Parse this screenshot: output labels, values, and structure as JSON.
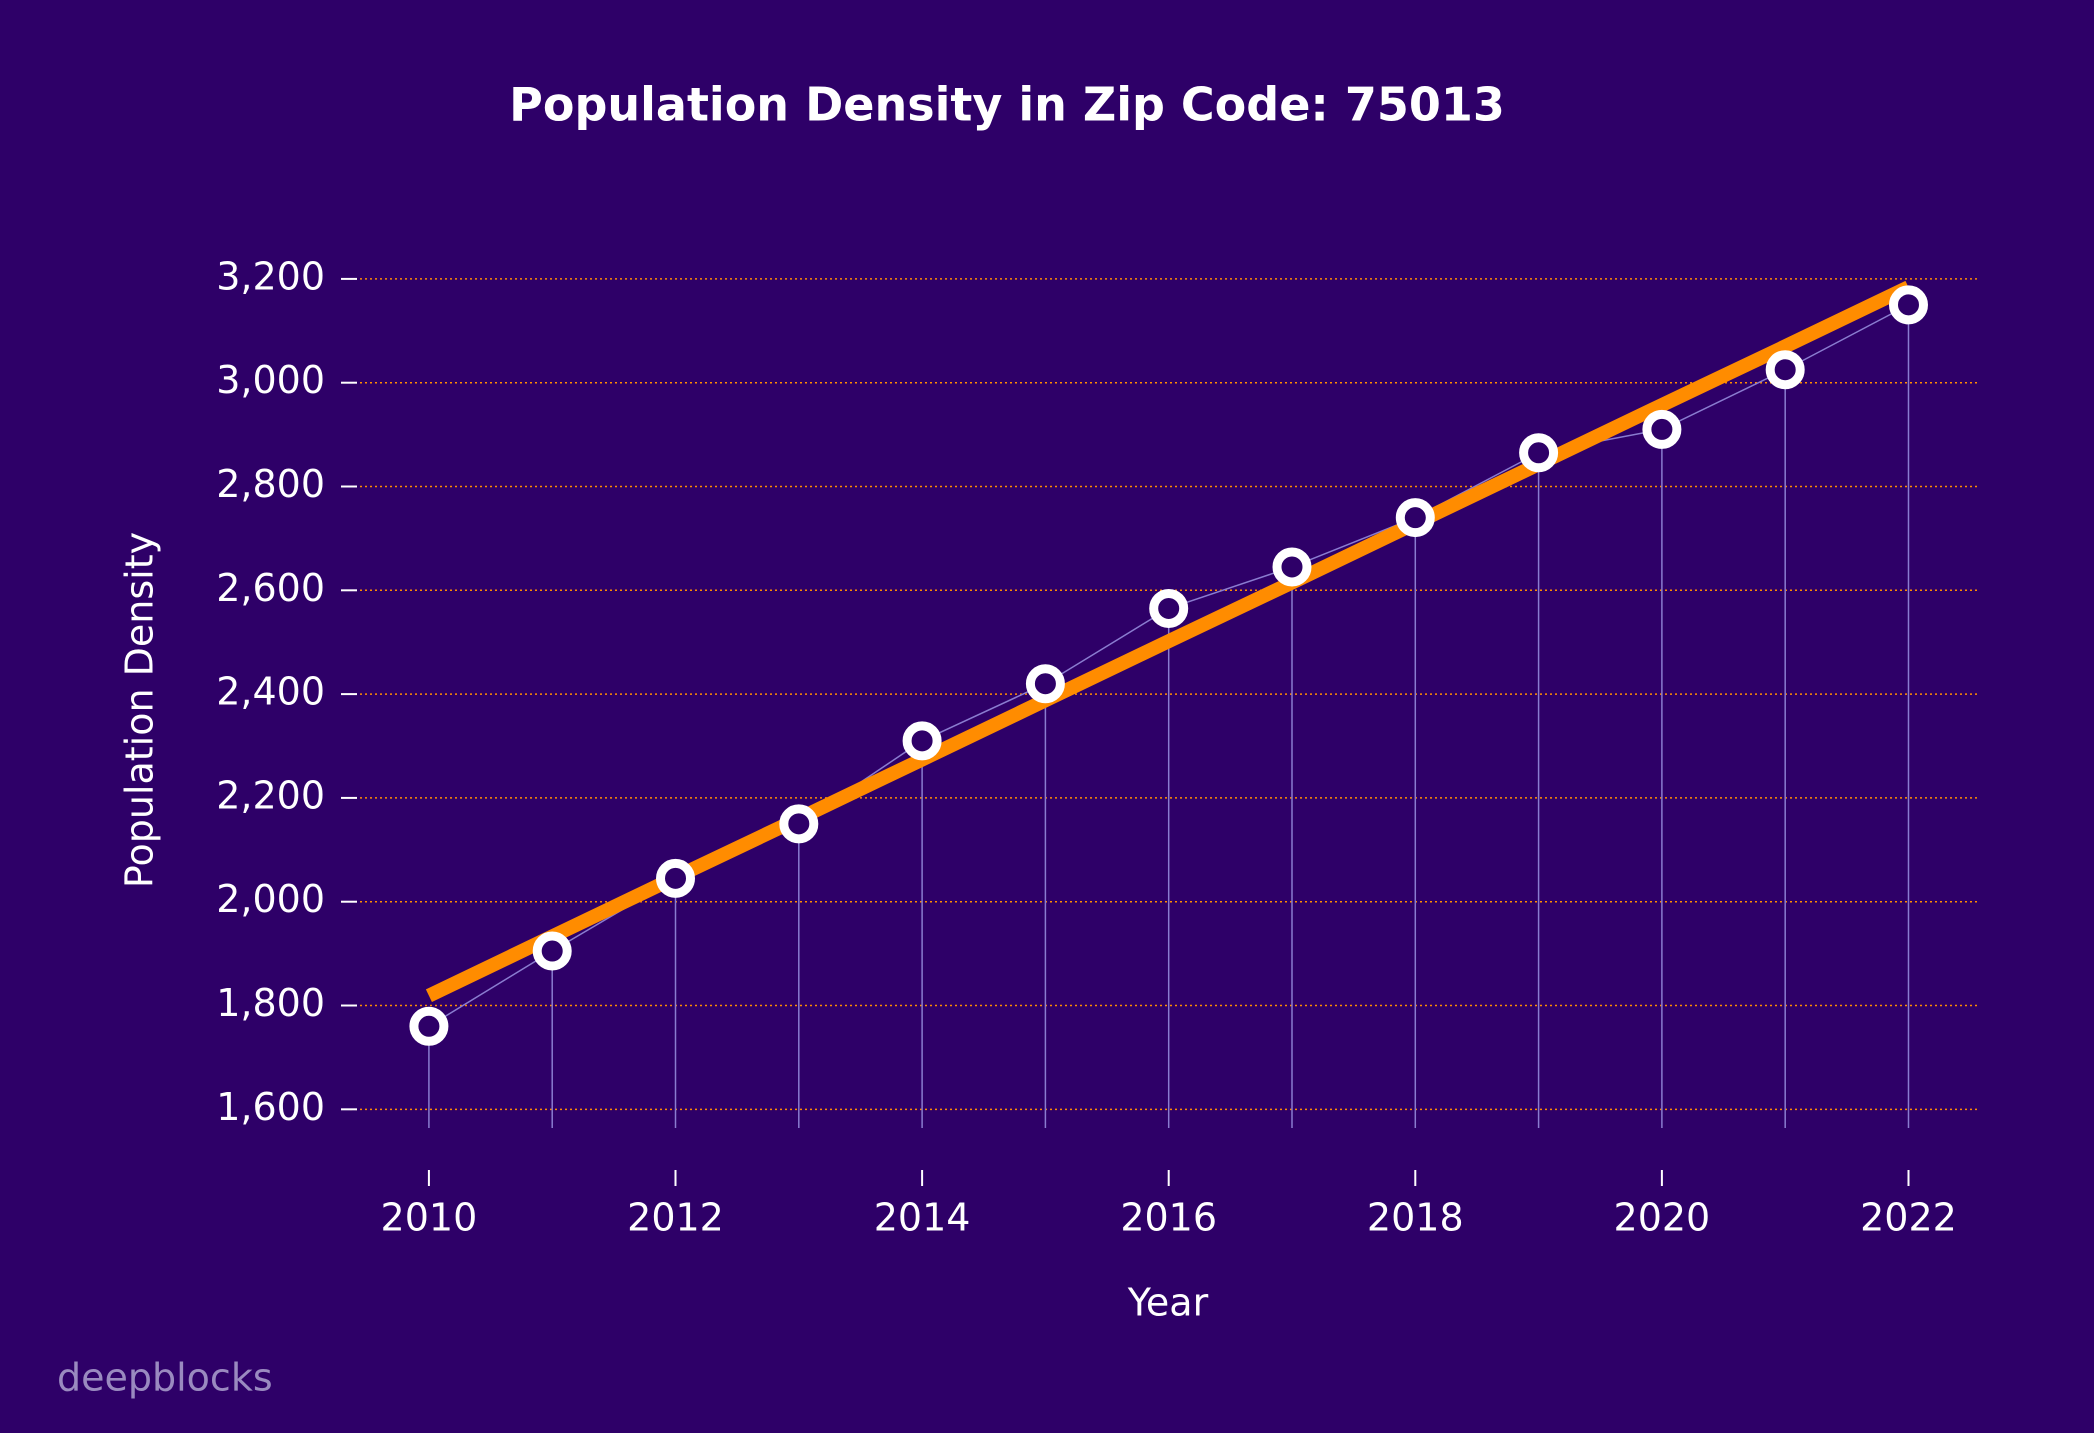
{
  "chart_data": {
    "type": "line",
    "title": "Population Density in Zip Code: 75013",
    "x_label": "Year",
    "y_label": "Population Density",
    "watermark": "deepblocks",
    "x": [
      2010,
      2011,
      2012,
      2013,
      2014,
      2015,
      2016,
      2017,
      2018,
      2019,
      2020,
      2021,
      2022
    ],
    "series": [
      {
        "color": "#ffffff",
        "values": [
          1760,
          1905,
          2045,
          2150,
          2310,
          2420,
          2565,
          2645,
          2740,
          2865,
          2910,
          3025,
          3150
        ]
      },
      {
        "color": "#ff8c00",
        "values": [
          1819,
          1933,
          2047,
          2160,
          2274,
          2388,
          2502,
          2615,
          2729,
          2843,
          2957,
          3070,
          3184
        ]
      }
    ],
    "xlim": [
      2009.36,
      2022.58
    ],
    "xticks": [
      2010,
      2012,
      2014,
      2016,
      2018,
      2020,
      2022
    ],
    "ylim": [
      1564,
      3300
    ],
    "yticks": [
      {
        "value": 1600,
        "label": "1,600"
      },
      {
        "value": 1800,
        "label": "1,800"
      },
      {
        "value": 2000,
        "label": "2,000"
      },
      {
        "value": 2200,
        "label": "2,200"
      },
      {
        "value": 2400,
        "label": "2,400"
      },
      {
        "value": 2600,
        "label": "2,600"
      },
      {
        "value": 2800,
        "label": "2,800"
      },
      {
        "value": 3000,
        "label": "3,000"
      },
      {
        "value": 3200,
        "label": "3,200"
      }
    ],
    "grid": true,
    "grid_color": "#ff8c00",
    "stem_color": "#8a7cd0"
  }
}
